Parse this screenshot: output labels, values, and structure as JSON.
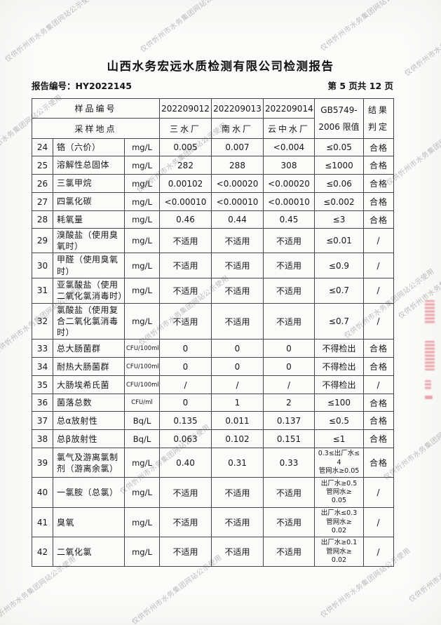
{
  "watermark": {
    "text": "仅供忻州市水务集团网站公示使用"
  },
  "page": {
    "title": "山西水务宏远水质检测有限公司检测报告",
    "report_no": "报告编号：HY2022145",
    "page_info": "第 5 页共 12 页"
  },
  "table": {
    "header": {
      "sample_no_label": "样品编号",
      "sample_site_label": "采样地点",
      "samples": [
        "202209012",
        "202209013",
        "202209014"
      ],
      "sites": [
        "三水厂",
        "南水厂",
        "云中水厂"
      ],
      "limit_label_line1": "GB5749-",
      "limit_label_line2": "2006 限值",
      "result_label_line1": "结果",
      "result_label_line2": "判定"
    },
    "rows": [
      {
        "no": "24",
        "name": "铬（六价）",
        "unit": "mg/L",
        "v1": "0.005",
        "v2": "0.007",
        "v3": "<0.004",
        "limit": "≤0.05",
        "result": "合格"
      },
      {
        "no": "25",
        "name": "溶解性总固体",
        "unit": "mg/L",
        "v1": "282",
        "v2": "288",
        "v3": "308",
        "limit": "≤1000",
        "result": "合格"
      },
      {
        "no": "26",
        "name": "三氯甲烷",
        "unit": "mg/L",
        "v1": "0.00102",
        "v2": "<0.00020",
        "v3": "<0.00020",
        "limit": "≤0.06",
        "result": "合格"
      },
      {
        "no": "27",
        "name": "四氯化碳",
        "unit": "mg/L",
        "v1": "<0.00010",
        "v2": "<0.00010",
        "v3": "<0.00010",
        "limit": "≤0.002",
        "result": "合格"
      },
      {
        "no": "28",
        "name": "耗氧量",
        "unit": "mg/L",
        "v1": "0.46",
        "v2": "0.44",
        "v3": "0.45",
        "limit": "≤3",
        "result": "合格"
      },
      {
        "no": "29",
        "name": "溴酸盐（使用臭氧时）",
        "unit": "mg/L",
        "v1": "不适用",
        "v2": "不适用",
        "v3": "不适用",
        "limit": "≤0.01",
        "result": "/"
      },
      {
        "no": "30",
        "name": "甲醛（使用臭氧时）",
        "unit": "mg/L",
        "v1": "不适用",
        "v2": "不适用",
        "v3": "不适用",
        "limit": "≤0.9",
        "result": "/"
      },
      {
        "no": "31",
        "name": "亚氯酸盐（使用二氧化氯消毒时）",
        "unit": "mg/L",
        "v1": "不适用",
        "v2": "不适用",
        "v3": "不适用",
        "limit": "≤0.7",
        "result": "/"
      },
      {
        "no": "32",
        "name": "氯酸盐（使用复合二氧化氯消毒时）",
        "unit": "mg/L",
        "v1": "不适用",
        "v2": "不适用",
        "v3": "不适用",
        "limit": "≤0.7",
        "result": "/"
      },
      {
        "no": "33",
        "name": "总大肠菌群",
        "unit": "CFU/100ml",
        "v1": "0",
        "v2": "0",
        "v3": "0",
        "limit": "不得检出",
        "result": "合格"
      },
      {
        "no": "34",
        "name": "耐热大肠菌群",
        "unit": "CFU/100ml",
        "v1": "0",
        "v2": "0",
        "v3": "0",
        "limit": "不得检出",
        "result": "合格"
      },
      {
        "no": "35",
        "name": "大肠埃希氏菌",
        "unit": "CFU/100ml",
        "v1": "/",
        "v2": "/",
        "v3": "/",
        "limit": "不得检出",
        "result": "/"
      },
      {
        "no": "36",
        "name": "菌落总数",
        "unit": "CFU/ml",
        "v1": "0",
        "v2": "1",
        "v3": "2",
        "limit": "≤100",
        "result": "合格"
      },
      {
        "no": "37",
        "name": "总α放射性",
        "unit": "Bq/L",
        "v1": "0.135",
        "v2": "0.011",
        "v3": "0.137",
        "limit": "≤0.5",
        "result": "合格"
      },
      {
        "no": "38",
        "name": "总β放射性",
        "unit": "Bq/L",
        "v1": "0.063",
        "v2": "0.102",
        "v3": "0.151",
        "limit": "≤1",
        "result": "合格"
      },
      {
        "no": "39",
        "name": "氯气及游离氯制剂（游离余氯）",
        "unit": "mg/L",
        "v1": "0.40",
        "v2": "0.31",
        "v3": "0.33",
        "limit": "0.3≤出厂水≤\n4\n管网水≥0.05",
        "result": "合格"
      },
      {
        "no": "40",
        "name": "一氯胺（总氯）",
        "unit": "mg/L",
        "v1": "不适用",
        "v2": "不适用",
        "v3": "不适用",
        "limit": "出厂水≥0.5\n管网水≥\n0.05",
        "result": "/"
      },
      {
        "no": "41",
        "name": "臭氧",
        "unit": "mg/L",
        "v1": "不适用",
        "v2": "不适用",
        "v3": "不适用",
        "limit": "出厂水≤0.3\n管网水≥\n0.02",
        "result": "/"
      },
      {
        "no": "42",
        "name": "二氧化氯",
        "unit": "mg/L",
        "v1": "不适用",
        "v2": "不适用",
        "v3": "不适用",
        "limit": "出厂水≥0.1\n管网水≥\n0.02",
        "result": "/"
      }
    ]
  }
}
